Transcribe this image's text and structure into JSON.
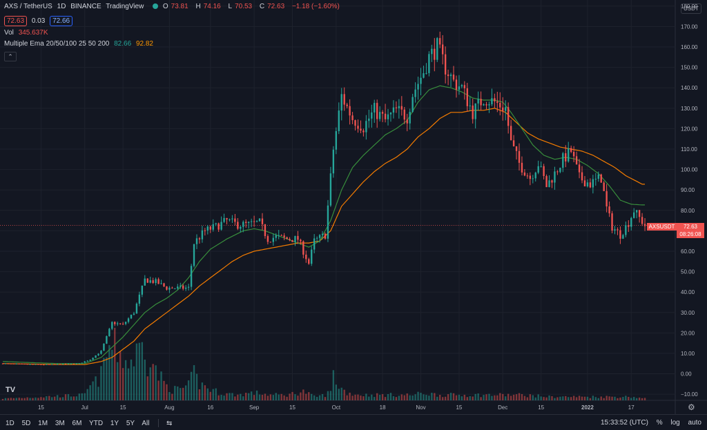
{
  "header": {
    "symbol": "AXS / TetherUS",
    "interval": "1D",
    "exchange": "BINANCE",
    "platform": "TradingView",
    "ohlc": {
      "o_label": "O",
      "o": "73.81",
      "h_label": "H",
      "h": "74.16",
      "l_label": "L",
      "l": "70.53",
      "c_label": "C",
      "c": "72.63",
      "chg": "−1.18 (−1.60%)"
    },
    "bid": "72.63",
    "spread": "0.03",
    "ask": "72.66"
  },
  "volume_legend": {
    "label": "Vol",
    "value": "345.637K"
  },
  "ema_legend": {
    "label": "Multiple Ema 20/50/100 25 50 200",
    "ema_green": "82.66",
    "ema_orange": "92.82"
  },
  "collapse_icon": "chevron-up-icon",
  "currency_badge": "USDT",
  "price_tag": {
    "symbol": "AXSUSDT",
    "price": "72.63",
    "countdown": "08:26:08"
  },
  "bottom_bar": {
    "ranges": [
      "1D",
      "5D",
      "1M",
      "3M",
      "6M",
      "YTD",
      "1Y",
      "5Y",
      "All"
    ],
    "compare_icon": "date-range-icon",
    "time": "15:33:52 (UTC)",
    "percent": "%",
    "log": "log",
    "auto": "auto"
  },
  "logo": "TV",
  "colors": {
    "up": "#26a69a",
    "down": "#f05350",
    "ema_fast": "#388e3c",
    "ema_slow": "#f57c00",
    "bg": "#131722"
  },
  "chart_data": {
    "type": "candlestick",
    "title": "AXS / TetherUS · 1D · BINANCE",
    "xlabel": "",
    "ylabel": "",
    "ylim": [
      -13,
      183
    ],
    "yticks": [
      -10,
      0,
      10,
      20,
      30,
      40,
      50,
      60,
      70,
      80,
      90,
      100,
      110,
      120,
      130,
      140,
      150,
      160,
      170,
      180
    ],
    "ytick_labels": [
      "−10.00",
      "0.00",
      "10.00",
      "20.00",
      "30.00",
      "40.00",
      "50.00",
      "60.00",
      "70.00",
      "80.00",
      "90.00",
      "100.00",
      "110.00",
      "120.00",
      "130.00",
      "140.00",
      "150.00",
      "160.00",
      "170.00",
      "180.00"
    ],
    "xtick_labels": [
      {
        "label": "15",
        "day": 14
      },
      {
        "label": "Jul",
        "day": 30
      },
      {
        "label": "15",
        "day": 44
      },
      {
        "label": "Aug",
        "day": 61
      },
      {
        "label": "16",
        "day": 76
      },
      {
        "label": "Sep",
        "day": 92
      },
      {
        "label": "15",
        "day": 106
      },
      {
        "label": "Oct",
        "day": 122
      },
      {
        "label": "18",
        "day": 139
      },
      {
        "label": "Nov",
        "day": 153
      },
      {
        "label": "15",
        "day": 167
      },
      {
        "label": "Dec",
        "day": 183
      },
      {
        "label": "15",
        "day": 197
      },
      {
        "label": "2022",
        "day": 214
      },
      {
        "label": "17",
        "day": 230
      }
    ],
    "close_key": [
      [
        0,
        5
      ],
      [
        15,
        4.5
      ],
      [
        28,
        5
      ],
      [
        32,
        7
      ],
      [
        36,
        11
      ],
      [
        40,
        25
      ],
      [
        44,
        24
      ],
      [
        48,
        30
      ],
      [
        52,
        46
      ],
      [
        56,
        45
      ],
      [
        60,
        42
      ],
      [
        64,
        42
      ],
      [
        68,
        42
      ],
      [
        70,
        64
      ],
      [
        74,
        70
      ],
      [
        78,
        72
      ],
      [
        82,
        75
      ],
      [
        86,
        73
      ],
      [
        90,
        73
      ],
      [
        94,
        74
      ],
      [
        97,
        66
      ],
      [
        100,
        67
      ],
      [
        104,
        66
      ],
      [
        108,
        66
      ],
      [
        112,
        54
      ],
      [
        114,
        65
      ],
      [
        118,
        68
      ],
      [
        121,
        110
      ],
      [
        124,
        136
      ],
      [
        128,
        125
      ],
      [
        132,
        121
      ],
      [
        136,
        129
      ],
      [
        140,
        124
      ],
      [
        144,
        129
      ],
      [
        148,
        126
      ],
      [
        150,
        137
      ],
      [
        154,
        148
      ],
      [
        156,
        155
      ],
      [
        159,
        160
      ],
      [
        162,
        150
      ],
      [
        165,
        143
      ],
      [
        168,
        140
      ],
      [
        172,
        128
      ],
      [
        176,
        135
      ],
      [
        180,
        133
      ],
      [
        184,
        130
      ],
      [
        186,
        113
      ],
      [
        189,
        103
      ],
      [
        193,
        96
      ],
      [
        196,
        103
      ],
      [
        199,
        92
      ],
      [
        202,
        98
      ],
      [
        205,
        105
      ],
      [
        208,
        109
      ],
      [
        211,
        96
      ],
      [
        215,
        93
      ],
      [
        219,
        96
      ],
      [
        221,
        81
      ],
      [
        223,
        72
      ],
      [
        226,
        68
      ],
      [
        229,
        74
      ],
      [
        231,
        80
      ],
      [
        235,
        72.63
      ]
    ],
    "volume_key": [
      [
        0,
        1
      ],
      [
        30,
        3
      ],
      [
        32,
        8
      ],
      [
        34,
        10
      ],
      [
        36,
        14
      ],
      [
        38,
        26
      ],
      [
        40,
        30
      ],
      [
        42,
        28
      ],
      [
        44,
        24
      ],
      [
        46,
        20
      ],
      [
        48,
        24
      ],
      [
        50,
        28
      ],
      [
        52,
        32
      ],
      [
        53,
        22
      ],
      [
        54,
        26
      ],
      [
        56,
        16
      ],
      [
        58,
        12
      ],
      [
        60,
        8
      ],
      [
        62,
        6
      ],
      [
        64,
        6
      ],
      [
        66,
        7
      ],
      [
        68,
        8
      ],
      [
        70,
        15
      ],
      [
        72,
        9
      ],
      [
        74,
        8
      ],
      [
        76,
        6
      ],
      [
        80,
        4
      ],
      [
        86,
        3
      ],
      [
        90,
        4
      ],
      [
        94,
        4
      ],
      [
        98,
        3
      ],
      [
        104,
        3
      ],
      [
        110,
        5
      ],
      [
        114,
        2
      ],
      [
        118,
        3
      ],
      [
        120,
        5
      ],
      [
        121,
        14
      ],
      [
        123,
        8
      ],
      [
        126,
        4
      ],
      [
        132,
        3
      ],
      [
        140,
        3
      ],
      [
        150,
        3
      ],
      [
        154,
        4
      ],
      [
        160,
        3
      ],
      [
        170,
        3
      ],
      [
        180,
        3
      ],
      [
        186,
        3
      ],
      [
        190,
        3
      ],
      [
        200,
        2
      ],
      [
        210,
        2
      ],
      [
        220,
        2
      ],
      [
        230,
        2
      ],
      [
        235,
        1
      ]
    ],
    "ema_fast_key": [
      [
        0,
        6
      ],
      [
        20,
        5
      ],
      [
        30,
        5
      ],
      [
        36,
        8
      ],
      [
        40,
        13
      ],
      [
        44,
        18
      ],
      [
        48,
        24
      ],
      [
        52,
        30
      ],
      [
        56,
        34
      ],
      [
        60,
        37
      ],
      [
        64,
        41
      ],
      [
        68,
        47
      ],
      [
        72,
        55
      ],
      [
        76,
        61
      ],
      [
        82,
        66
      ],
      [
        88,
        70
      ],
      [
        92,
        71
      ],
      [
        96,
        70
      ],
      [
        102,
        67
      ],
      [
        108,
        64
      ],
      [
        112,
        62
      ],
      [
        116,
        65
      ],
      [
        120,
        75
      ],
      [
        124,
        90
      ],
      [
        128,
        101
      ],
      [
        132,
        107
      ],
      [
        136,
        112
      ],
      [
        140,
        117
      ],
      [
        144,
        120
      ],
      [
        148,
        124
      ],
      [
        152,
        133
      ],
      [
        156,
        139
      ],
      [
        160,
        141
      ],
      [
        164,
        140
      ],
      [
        168,
        138
      ],
      [
        172,
        135
      ],
      [
        176,
        134
      ],
      [
        180,
        134
      ],
      [
        183,
        133
      ],
      [
        186,
        128
      ],
      [
        190,
        120
      ],
      [
        194,
        112
      ],
      [
        198,
        107
      ],
      [
        202,
        105
      ],
      [
        206,
        106
      ],
      [
        210,
        105
      ],
      [
        214,
        102
      ],
      [
        218,
        98
      ],
      [
        222,
        92
      ],
      [
        226,
        85
      ],
      [
        230,
        83
      ],
      [
        234,
        82.66
      ]
    ],
    "ema_slow_key": [
      [
        0,
        5
      ],
      [
        20,
        4.5
      ],
      [
        30,
        4.5
      ],
      [
        36,
        6
      ],
      [
        40,
        8
      ],
      [
        44,
        12
      ],
      [
        48,
        16
      ],
      [
        52,
        22
      ],
      [
        56,
        26
      ],
      [
        60,
        30
      ],
      [
        64,
        34
      ],
      [
        68,
        38
      ],
      [
        72,
        43
      ],
      [
        76,
        47
      ],
      [
        80,
        51
      ],
      [
        84,
        55
      ],
      [
        88,
        58
      ],
      [
        92,
        60
      ],
      [
        96,
        61
      ],
      [
        100,
        62
      ],
      [
        104,
        63
      ],
      [
        108,
        64
      ],
      [
        112,
        64
      ],
      [
        116,
        65
      ],
      [
        120,
        70
      ],
      [
        124,
        82
      ],
      [
        128,
        88
      ],
      [
        132,
        94
      ],
      [
        136,
        99
      ],
      [
        140,
        103
      ],
      [
        144,
        106
      ],
      [
        148,
        110
      ],
      [
        152,
        116
      ],
      [
        156,
        120
      ],
      [
        160,
        125
      ],
      [
        164,
        128
      ],
      [
        168,
        128
      ],
      [
        172,
        129
      ],
      [
        176,
        129
      ],
      [
        180,
        130
      ],
      [
        184,
        128
      ],
      [
        188,
        123
      ],
      [
        192,
        118
      ],
      [
        196,
        115
      ],
      [
        200,
        113
      ],
      [
        204,
        111
      ],
      [
        208,
        110
      ],
      [
        212,
        109
      ],
      [
        216,
        107
      ],
      [
        220,
        104
      ],
      [
        224,
        101
      ],
      [
        228,
        97
      ],
      [
        234,
        92.82
      ]
    ],
    "x_days": 236
  }
}
